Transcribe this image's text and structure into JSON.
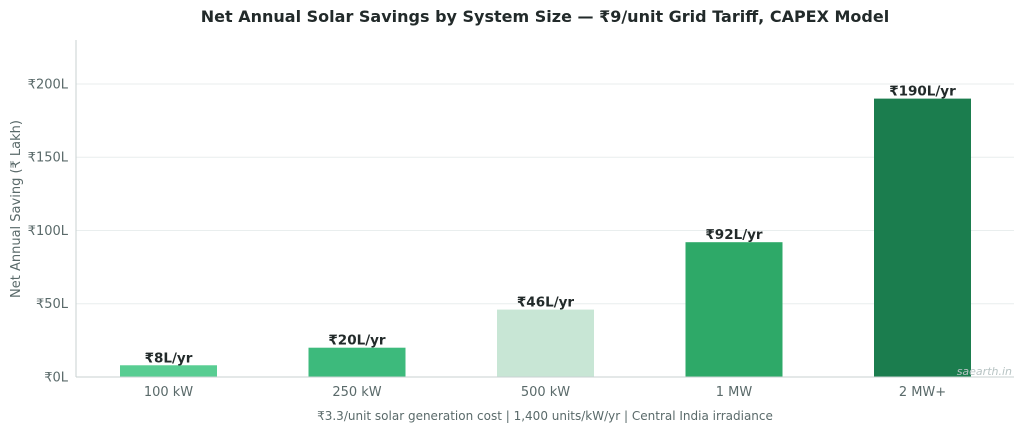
{
  "chart_data": {
    "type": "bar",
    "title": "Net Annual Solar Savings by System Size — ₹9/unit Grid Tariff, CAPEX Model",
    "ylabel": "Net Annual Saving (₹ Lakh)",
    "xlabel": "₹3.3/unit solar generation cost  |  1,400 units/kW/yr  |  Central India irradiance",
    "categories": [
      "100 kW",
      "250 kW",
      "500 kW",
      "1 MW",
      "2 MW+"
    ],
    "values": [
      8,
      20,
      46,
      92,
      190
    ],
    "data_labels": [
      "₹8L/yr",
      "₹20L/yr",
      "₹46L/yr",
      "₹92L/yr",
      "₹190L/yr"
    ],
    "bar_colors": [
      "#58cd92",
      "#3dba7c",
      "#c8e6d5",
      "#2ea968",
      "#1b7d4e"
    ],
    "yticks": [
      0,
      50,
      100,
      150,
      200
    ],
    "ytick_labels": [
      "₹0L",
      "₹50L",
      "₹100L",
      "₹150L",
      "₹200L"
    ],
    "ylim": [
      0,
      230
    ],
    "grid": true,
    "legend": "none"
  },
  "watermark": "saearth.in"
}
